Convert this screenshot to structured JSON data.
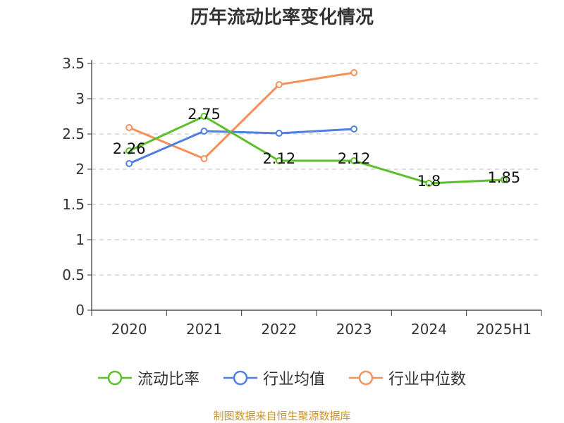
{
  "chart_data": {
    "type": "line",
    "title": "历年流动比率变化情况",
    "categories": [
      "2020",
      "2021",
      "2022",
      "2023",
      "2024",
      "2025H1"
    ],
    "ylim": [
      0,
      3.5
    ],
    "yticks": [
      "0",
      "0.5",
      "1",
      "1.5",
      "2",
      "2.5",
      "3",
      "3.5"
    ],
    "grid": true,
    "legend_position": "bottom",
    "series": [
      {
        "name": "流动比率",
        "color": "#5bbf2a",
        "values": [
          2.26,
          2.75,
          2.12,
          2.12,
          1.8,
          1.85
        ],
        "labels": [
          "2.26",
          "2.75",
          "2.12",
          "2.12",
          "1.8",
          "1.85"
        ]
      },
      {
        "name": "行业均值",
        "color": "#4f7fe0",
        "values": [
          2.08,
          2.54,
          2.51,
          2.57,
          null,
          null
        ]
      },
      {
        "name": "行业中位数",
        "color": "#f4905a",
        "values": [
          2.59,
          2.15,
          3.2,
          3.37,
          null,
          null
        ]
      }
    ]
  },
  "footer": "制图数据来自恒生聚源数据库"
}
